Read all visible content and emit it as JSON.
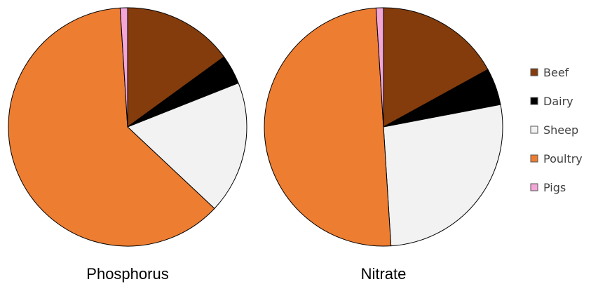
{
  "chart_data": [
    {
      "type": "pie",
      "title": "Phosphorus",
      "categories": [
        "Beef",
        "Dairy",
        "Sheep",
        "Poultry",
        "Pigs"
      ],
      "values": [
        15,
        4,
        18,
        62,
        1
      ]
    },
    {
      "type": "pie",
      "title": "Nitrate",
      "categories": [
        "Beef",
        "Dairy",
        "Sheep",
        "Poultry",
        "Pigs"
      ],
      "values": [
        17,
        5,
        27,
        50,
        1
      ]
    }
  ],
  "legend": {
    "placement": "right",
    "items": [
      {
        "label": "Beef",
        "color": "#843c0c"
      },
      {
        "label": "Dairy",
        "color": "#000000"
      },
      {
        "label": "Sheep",
        "color": "#f2f2f2"
      },
      {
        "label": "Poultry",
        "color": "#ed7d31"
      },
      {
        "label": "Pigs",
        "color": "#f4a6d7"
      }
    ]
  }
}
